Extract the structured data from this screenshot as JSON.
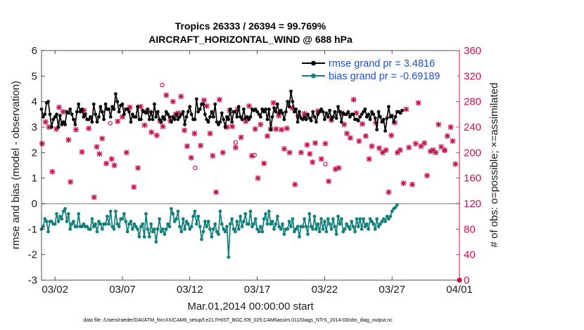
{
  "chart_data": {
    "type": "line",
    "title": "Tropics 26333 / 26394 = 99.769%",
    "subtitle": "AIRCRAFT_HORIZONTAL_WIND @ 688 hPa",
    "xlabel": "Mar.01,2014 00:00:00 start",
    "ylabel": "rmse and bias (model - observation)",
    "ylabel_right": "# of obs: o=possible; ×=assimilated",
    "xlim": [
      0,
      31
    ],
    "ylim": [
      -3,
      6
    ],
    "ylim_right": [
      0,
      360
    ],
    "x_ticks": [
      {
        "x": 1,
        "label": "03/02"
      },
      {
        "x": 6,
        "label": "03/07"
      },
      {
        "x": 11,
        "label": "03/12"
      },
      {
        "x": 16,
        "label": "03/17"
      },
      {
        "x": 21,
        "label": "03/22"
      },
      {
        "x": 26,
        "label": "03/27"
      },
      {
        "x": 31,
        "label": "04/01"
      }
    ],
    "y_ticks": [
      "-3",
      "-2",
      "-1",
      "0",
      "1",
      "2",
      "3",
      "4",
      "5",
      "6"
    ],
    "y_ticks_right": [
      "0",
      "40",
      "80",
      "120",
      "160",
      "200",
      "240",
      "280",
      "320",
      "360"
    ],
    "legend": {
      "position": "top-right",
      "entries": [
        "rmse grand pr = 3.4816",
        "bias grand pr = -0.69189"
      ]
    },
    "colors": {
      "rmse": "#000000",
      "bias": "#12807a",
      "obs": "#c8124f",
      "legend_text": "#1f4fd6",
      "zero_line": "#a0a0a0"
    },
    "series": [
      {
        "name": "rmse",
        "step_days": 0.125,
        "values": [
          3.7,
          3.4,
          3.5,
          3.95,
          4.0,
          3.5,
          3.0,
          3.3,
          3.4,
          3.5,
          3.0,
          3.45,
          3.1,
          3.2,
          3.1,
          3.6,
          3.55,
          3.7,
          3.5,
          3.3,
          3.1,
          3.6,
          3.9,
          3.6,
          3.7,
          3.4,
          3.5,
          3.3,
          3.3,
          3.4,
          3.2,
          3.9,
          3.5,
          3.2,
          3.4,
          3.8,
          3.6,
          3.3,
          3.9,
          3.7,
          3.7,
          3.4,
          3.8,
          3.7,
          4.3,
          4.0,
          3.6,
          3.85,
          3.9,
          3.5,
          3.7,
          3.7,
          3.6,
          3.2,
          3.5,
          3.4,
          3.4,
          3.8,
          3.3,
          3.3,
          3.65,
          3.6,
          3.55,
          3.7,
          3.3,
          3.6,
          3.3,
          3.9,
          3.4,
          3.6,
          3.3,
          3.2,
          3.4,
          3.3,
          3.6,
          3.5,
          3.4,
          3.2,
          3.4,
          3.3,
          3.5,
          3.3,
          3.4,
          3.5,
          3.6,
          3.1,
          3.4,
          3.6,
          3.8,
          3.5,
          3.3,
          3.3,
          4.1,
          3.6,
          3.7,
          3.9,
          3.9,
          3.5,
          3.3,
          3.2,
          3.4,
          3.6,
          3.4,
          3.9,
          3.2,
          3.1,
          3.2,
          3.55,
          3.3,
          3.0,
          3.4,
          3.3,
          3.7,
          3.2,
          3.6,
          3.6,
          3.4,
          3.8,
          3.4,
          3.3,
          3.7,
          3.35,
          3.4,
          3.3,
          3.4,
          3.7,
          3.65,
          3.7,
          3.6,
          3.5,
          3.4,
          3.7,
          3.6,
          3.7,
          3.3,
          3.7,
          2.9,
          3.4,
          3.75,
          3.6,
          3.9,
          3.55,
          3.65,
          3.55,
          3.3,
          3.6,
          4.0,
          3.8,
          4.4,
          4.0,
          3.6,
          3.7,
          3.2,
          3.6,
          3.35,
          3.3,
          3.4,
          3.3,
          3.5,
          3.35,
          3.25,
          3.6,
          3.4,
          3.2,
          3.5,
          3.6,
          3.7,
          3.6,
          3.3,
          3.55,
          3.4,
          3.65,
          3.3,
          3.4,
          3.6,
          3.35,
          3.8,
          3.6,
          3.2,
          3.55,
          3.5,
          3.5,
          3.6,
          3.4,
          3.5,
          3.5,
          3.3,
          3.3,
          3.25,
          3.4,
          3.5,
          3.6,
          3.7,
          3.4,
          3.5,
          3.3,
          3.6,
          3.5,
          3.35,
          2.9,
          3.6,
          3.4,
          3.2,
          3.3,
          2.85,
          3.35,
          3.8,
          3.4,
          3.45,
          3.2,
          3.4,
          3.6,
          3.6,
          3.55,
          3.65
        ]
      },
      {
        "name": "bias",
        "step_days": 0.125,
        "values": [
          -1.0,
          -0.9,
          -0.6,
          -0.7,
          -1.1,
          -0.7,
          -0.7,
          -0.8,
          -0.8,
          -0.4,
          -0.7,
          -0.5,
          -0.6,
          -0.3,
          -0.2,
          -0.7,
          -0.4,
          -1.0,
          -0.8,
          -0.7,
          -0.9,
          -0.9,
          -0.4,
          -0.9,
          -0.9,
          -0.8,
          -0.9,
          -0.9,
          -1.0,
          -1.0,
          -0.6,
          -0.9,
          -0.8,
          -1.1,
          -0.7,
          -0.8,
          -1.0,
          -0.8,
          -0.8,
          -0.5,
          -0.8,
          -0.3,
          -0.9,
          -1.0,
          -0.3,
          -0.8,
          -0.9,
          -0.6,
          -0.6,
          -0.4,
          -0.7,
          -1.1,
          -0.8,
          -0.7,
          -1.0,
          -0.8,
          -0.9,
          -1.0,
          -1.3,
          -0.9,
          -0.8,
          -1.3,
          -0.4,
          -1.0,
          -1.3,
          -0.8,
          -1.1,
          -1.0,
          -1.5,
          -1.0,
          -0.6,
          -1.1,
          -1.0,
          -1.2,
          -1.0,
          -0.8,
          -0.9,
          -0.2,
          -0.4,
          -0.7,
          -0.6,
          -0.3,
          -0.9,
          -1.1,
          -0.6,
          -1.0,
          -0.7,
          -0.8,
          -1.0,
          -0.9,
          -0.5,
          -0.3,
          -0.8,
          -0.5,
          -0.9,
          -1.4,
          -1.1,
          -0.7,
          -0.9,
          -0.7,
          -1.0,
          -1.3,
          -1.0,
          -0.8,
          -1.1,
          -1.2,
          -0.3,
          -0.8,
          -1.0,
          -1.1,
          -0.9,
          -2.1,
          -0.8,
          -0.6,
          -1.0,
          -1.1,
          -0.7,
          -1.0,
          -0.5,
          -0.9,
          -0.7,
          -0.4,
          -0.8,
          -0.8,
          -0.3,
          -0.9,
          -0.8,
          -0.6,
          -1.0,
          -1.1,
          -0.9,
          -1.1,
          -0.6,
          -0.4,
          -0.8,
          -0.3,
          -0.8,
          -0.7,
          -1.0,
          -0.8,
          -0.5,
          -0.9,
          -1.0,
          -0.8,
          -1.2,
          -1.0,
          -1.0,
          -0.7,
          -0.9,
          -0.6,
          -1.1,
          -1.0,
          -0.9,
          -1.3,
          -0.9,
          -0.9,
          -0.6,
          -0.9,
          -1.2,
          -0.4,
          -0.9,
          -1.0,
          -0.5,
          -1.0,
          -0.8,
          -1.1,
          -0.6,
          -1.0,
          -0.7,
          -1.1,
          -0.6,
          -0.8,
          -1.0,
          -0.6,
          -0.9,
          -1.2,
          -0.5,
          -0.8,
          -0.6,
          -1.1,
          -1.0,
          -0.8,
          -0.9,
          -1.0,
          -0.7,
          -0.9,
          -1.1,
          -0.6,
          -0.9,
          -0.6,
          -1.0,
          -0.6,
          -0.9,
          -0.8,
          -1.0,
          -0.6,
          -0.7,
          -0.8,
          -1.0,
          -0.6,
          -0.9,
          -0.8,
          -0.7,
          -0.6,
          -0.7,
          -0.5,
          -0.6,
          -0.5,
          -0.3,
          -0.2,
          -0.15,
          -0.05
        ]
      },
      {
        "name": "obs_assimilated",
        "points": [
          [
            0.04,
            214
          ],
          [
            0.3,
            248
          ],
          [
            0.55,
            240
          ],
          [
            0.8,
            170
          ],
          [
            1.1,
            237
          ],
          [
            1.3,
            271
          ],
          [
            1.6,
            264
          ],
          [
            2.0,
            220
          ],
          [
            2.15,
            154
          ],
          [
            2.55,
            236
          ],
          [
            3.0,
            201
          ],
          [
            3.15,
            266
          ],
          [
            3.5,
            238
          ],
          [
            3.9,
            130
          ],
          [
            4.1,
            209
          ],
          [
            4.3,
            198
          ],
          [
            4.5,
            222
          ],
          [
            4.8,
            183
          ],
          [
            5.2,
            190
          ],
          [
            5.4,
            180
          ],
          [
            5.65,
            249
          ],
          [
            6.0,
            256
          ],
          [
            6.3,
            200
          ],
          [
            6.55,
            271
          ],
          [
            6.85,
            146
          ],
          [
            7.15,
            176
          ],
          [
            7.35,
            272
          ],
          [
            7.65,
            243
          ],
          [
            7.85,
            265
          ],
          [
            8.15,
            232
          ],
          [
            8.55,
            227
          ],
          [
            8.8,
            249
          ],
          [
            9.0,
            241
          ],
          [
            9.25,
            290
          ],
          [
            9.55,
            250
          ],
          [
            9.75,
            280
          ],
          [
            9.95,
            260
          ],
          [
            10.15,
            262
          ],
          [
            10.35,
            288
          ],
          [
            10.6,
            235
          ],
          [
            10.8,
            210
          ],
          [
            11.1,
            192
          ],
          [
            11.35,
            230
          ],
          [
            11.8,
            211
          ],
          [
            12.05,
            282
          ],
          [
            12.25,
            273
          ],
          [
            12.5,
            230
          ],
          [
            12.7,
            195
          ],
          [
            12.95,
            138
          ],
          [
            13.2,
            283
          ],
          [
            13.45,
            200
          ],
          [
            13.75,
            240
          ],
          [
            13.95,
            266
          ],
          [
            14.15,
            241
          ],
          [
            14.4,
            208
          ],
          [
            14.55,
            268
          ],
          [
            14.8,
            224
          ],
          [
            15.15,
            249
          ],
          [
            15.4,
            273
          ],
          [
            15.6,
            195
          ],
          [
            15.85,
            237
          ],
          [
            16.05,
            160
          ],
          [
            16.25,
            244
          ],
          [
            16.5,
            183
          ],
          [
            16.75,
            226
          ],
          [
            17.0,
            237
          ],
          [
            17.2,
            278
          ],
          [
            17.4,
            237
          ],
          [
            17.6,
            258
          ],
          [
            17.8,
            236
          ],
          [
            18.0,
            206
          ],
          [
            18.2,
            238
          ],
          [
            18.4,
            200
          ],
          [
            18.6,
            270
          ],
          [
            18.8,
            150
          ],
          [
            19.05,
            258
          ],
          [
            19.25,
            200
          ],
          [
            19.5,
            261
          ],
          [
            19.7,
            212
          ],
          [
            19.9,
            198
          ],
          [
            20.1,
            185
          ],
          [
            20.3,
            215
          ],
          [
            20.5,
            265
          ],
          [
            20.75,
            190
          ],
          [
            21.05,
            214
          ],
          [
            21.3,
            155
          ],
          [
            21.5,
            251
          ],
          [
            21.8,
            174
          ],
          [
            22.05,
            176
          ],
          [
            22.25,
            262
          ],
          [
            22.45,
            244
          ],
          [
            22.65,
            230
          ],
          [
            22.9,
            223
          ],
          [
            23.15,
            283
          ],
          [
            23.35,
            262
          ],
          [
            23.55,
            218
          ],
          [
            23.8,
            245
          ],
          [
            24.05,
            226
          ],
          [
            24.3,
            190
          ],
          [
            24.5,
            210
          ],
          [
            24.8,
            247
          ],
          [
            25.05,
            207
          ],
          [
            25.3,
            200
          ],
          [
            25.55,
            204
          ],
          [
            25.75,
            138
          ],
          [
            25.95,
            227
          ],
          [
            26.2,
            247
          ],
          [
            26.4,
            200
          ],
          [
            26.6,
            204
          ],
          [
            26.85,
            152
          ],
          [
            27.05,
            268
          ],
          [
            27.25,
            208
          ],
          [
            27.5,
            150
          ],
          [
            27.75,
            214
          ],
          [
            27.95,
            278
          ],
          [
            28.15,
            210
          ],
          [
            28.4,
            215
          ],
          [
            28.6,
            164
          ],
          [
            28.85,
            202
          ],
          [
            29.05,
            204
          ],
          [
            29.25,
            200
          ],
          [
            29.45,
            244
          ],
          [
            29.65,
            209
          ],
          [
            29.9,
            204
          ],
          [
            30.1,
            226
          ],
          [
            30.35,
            240
          ],
          [
            30.5,
            218
          ],
          [
            30.7,
            182
          ]
        ]
      },
      {
        "name": "obs_possible",
        "points": [
          [
            8.95,
            306
          ],
          [
            11.4,
            176
          ],
          [
            14.4,
            216
          ],
          [
            21.05,
            182
          ],
          [
            15.8,
            196
          ],
          [
            5.1,
            246
          ],
          [
            29.9,
            203
          ]
        ]
      }
    ]
  },
  "footer": "data file: /Users/raeder/DAI/ATM_forcXX/CAM6_setup/f.e21.FHIST_BGC.f09_025.CAM6assim.011/Diags_NTrS_2014-03/obs_diag_output.nc"
}
